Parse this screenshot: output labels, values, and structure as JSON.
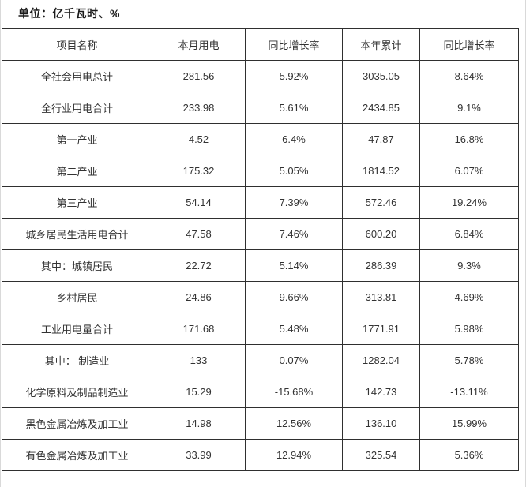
{
  "unit_label": "单位：亿千瓦时、%",
  "colors": {
    "table_border": "#2f2f2f",
    "text": "#333333",
    "page_edge_line": "#d9d9d9",
    "background": "#ffffff"
  },
  "table": {
    "headers": [
      "项目名称",
      "本月用电",
      "同比增长率",
      "本年累计",
      "同比增长率"
    ],
    "rows": [
      [
        "全社会用电总计",
        "281.56",
        "5.92%",
        "3035.05",
        "8.64%"
      ],
      [
        "全行业用电合计",
        "233.98",
        "5.61%",
        "2434.85",
        "9.1%"
      ],
      [
        "第一产业",
        "4.52",
        "6.4%",
        "47.87",
        "16.8%"
      ],
      [
        "第二产业",
        "175.32",
        "5.05%",
        "1814.52",
        "6.07%"
      ],
      [
        "第三产业",
        "54.14",
        "7.39%",
        "572.46",
        "19.24%"
      ],
      [
        "城乡居民生活用电合计",
        "47.58",
        "7.46%",
        "600.20",
        "6.84%"
      ],
      [
        "其中：城镇居民",
        "22.72",
        "5.14%",
        "286.39",
        "9.3%"
      ],
      [
        "乡村居民",
        "24.86",
        "9.66%",
        "313.81",
        "4.69%"
      ],
      [
        "工业用电量合计",
        "171.68",
        "5.48%",
        "1771.91",
        "5.98%"
      ],
      [
        "其中： 制造业",
        "133",
        "0.07%",
        "1282.04",
        "5.78%"
      ],
      [
        "化学原料及制品制造业",
        "15.29",
        "-15.68%",
        "142.73",
        "-13.11%"
      ],
      [
        "黑色金属冶炼及加工业",
        "14.98",
        "12.56%",
        "136.10",
        "15.99%"
      ],
      [
        "有色金属冶炼及加工业",
        "33.99",
        "12.94%",
        "325.54",
        "5.36%"
      ]
    ]
  }
}
